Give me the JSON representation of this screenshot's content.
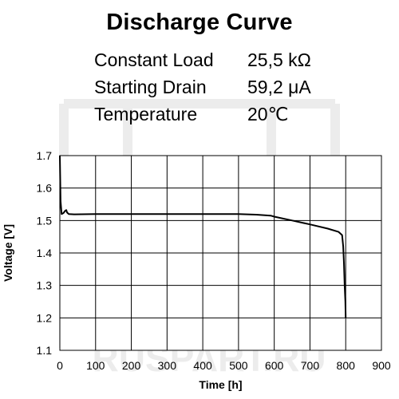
{
  "header": {
    "title": "Discharge Curve",
    "params": [
      {
        "label": "Constant Load",
        "value": "25,5 kΩ"
      },
      {
        "label": "Starting Drain",
        "value": "59,2 μA"
      },
      {
        "label": "Temperature",
        "value": "20℃"
      }
    ]
  },
  "watermark": {
    "text": "RUSPART.RU",
    "color": "#ececec"
  },
  "chart_data": {
    "type": "line",
    "title": "Discharge Curve",
    "xlabel": "Time [h]",
    "ylabel": "Voltage [V]",
    "xlim": [
      0,
      900
    ],
    "ylim": [
      1.1,
      1.7
    ],
    "x_ticks": [
      0,
      100,
      200,
      300,
      400,
      500,
      600,
      700,
      800,
      900
    ],
    "y_ticks": [
      1.1,
      1.2,
      1.3,
      1.4,
      1.5,
      1.6,
      1.7
    ],
    "grid": true,
    "line_color": "#000000",
    "series": [
      {
        "x": [
          0,
          2,
          5,
          10,
          15,
          18,
          20,
          25,
          40,
          100,
          200,
          300,
          400,
          500,
          550,
          590,
          600,
          650,
          700,
          750,
          780,
          790,
          793,
          795,
          797,
          799,
          800
        ],
        "y": [
          1.7,
          1.56,
          1.52,
          1.523,
          1.53,
          1.532,
          1.525,
          1.52,
          1.519,
          1.52,
          1.52,
          1.52,
          1.52,
          1.52,
          1.518,
          1.515,
          1.512,
          1.5,
          1.488,
          1.475,
          1.465,
          1.455,
          1.42,
          1.37,
          1.3,
          1.25,
          1.2
        ]
      }
    ]
  }
}
